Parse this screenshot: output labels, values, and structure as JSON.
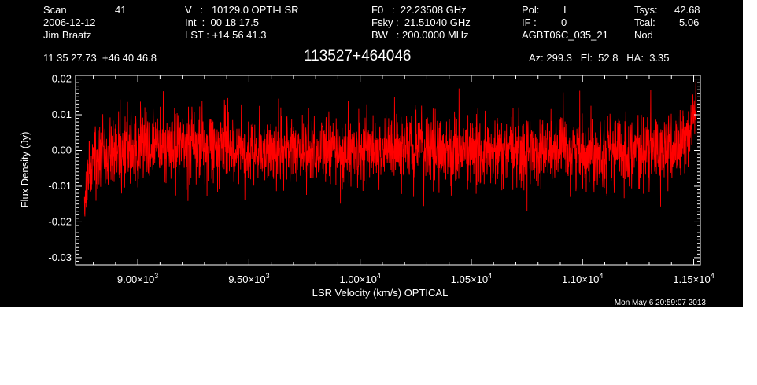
{
  "header": {
    "scan_label": "Scan",
    "scan_value": "41",
    "date": "2006-12-12",
    "observer": "Jim Braatz",
    "velocity_line": "V   :   10129.0 OPTI-LSR",
    "int_line": "Int  :  00 18 17.5",
    "lst_line": "LST : +14 56 41.3",
    "f0_line": "F0   :  22.23508 GHz",
    "fsky_line": "Fsky :  21.51040 GHz",
    "bw_line": "BW   : 200.0000 MHz",
    "pol_label": "Pol:",
    "pol_value": "I",
    "if_label": "IF :",
    "if_value": "0",
    "project": "AGBT06C_035_21",
    "tsys_label": "Tsys:",
    "tsys_value": "42.68",
    "tcal_label": "Tcal:",
    "tcal_value": "5.06",
    "mode": "Nod",
    "coordinates": "11 35 27.73  +46 40 46.8",
    "source": "113527+464046",
    "az_el_ha": "Az: 299.3   El:  52.8   HA:  3.35"
  },
  "footer": {
    "timestamp": "Mon May  6 20:59:07 2013"
  },
  "colors": {
    "background": "#000000",
    "axes": "#ffffff",
    "spectrum": "#ff0000",
    "page": "#ffffff"
  },
  "chart_data": {
    "type": "line",
    "title": "113527+464046",
    "xlabel": "LSR Velocity (km/s) OPTICAL",
    "ylabel": "Flux Density (Jy)",
    "xlim": [
      8720,
      11530
    ],
    "ylim": [
      -0.032,
      0.021
    ],
    "x_ticks": [
      {
        "value": 9000,
        "mantissa": "9.00×10",
        "exp": "3"
      },
      {
        "value": 9500,
        "mantissa": "9.50×10",
        "exp": "3"
      },
      {
        "value": 10000,
        "mantissa": "1.00×10",
        "exp": "4"
      },
      {
        "value": 10500,
        "mantissa": "1.05×10",
        "exp": "4"
      },
      {
        "value": 11000,
        "mantissa": "1.10×10",
        "exp": "4"
      },
      {
        "value": 11500,
        "mantissa": "1.15×10",
        "exp": "4"
      }
    ],
    "y_ticks": [
      {
        "value": 0.02,
        "label": "0.02"
      },
      {
        "value": 0.01,
        "label": "0.01"
      },
      {
        "value": 0.0,
        "label": "0.00"
      },
      {
        "value": -0.01,
        "label": "-0.01"
      },
      {
        "value": -0.02,
        "label": "-0.02"
      },
      {
        "value": -0.03,
        "label": "-0.03"
      }
    ],
    "grid": false,
    "series": [
      {
        "color": "#ff0000",
        "noise_rms": 0.005,
        "x": [
          8760,
          8780,
          8800,
          8850,
          9000,
          9200,
          9400,
          9600,
          9800,
          10000,
          10200,
          10400,
          10600,
          10800,
          11000,
          11200,
          11400,
          11450,
          11480,
          11500,
          11510
        ],
        "y": [
          -0.019,
          -0.008,
          0.0,
          0.0,
          0.001,
          0.001,
          0.001,
          0.0,
          0.0,
          0.0,
          0.001,
          0.0,
          -0.001,
          0.0,
          0.0,
          0.0,
          0.0,
          0.002,
          0.005,
          0.009,
          0.014
        ]
      }
    ]
  }
}
